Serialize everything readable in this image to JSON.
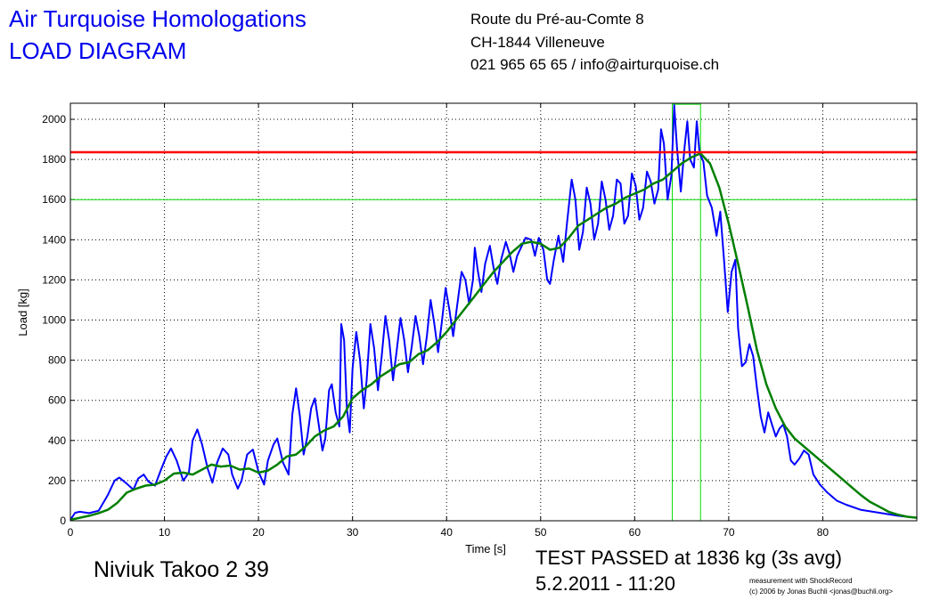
{
  "header": {
    "title_line1": "Air Turquoise Homologations",
    "title_line2": "LOAD DIAGRAM",
    "address_line1": "Route du Pré-au-Comte 8",
    "address_line2": "CH-1844 Villeneuve",
    "address_line3": "021 965 65 65 / info@airturquoise.ch"
  },
  "footer": {
    "glider": "Niviuk Takoo 2 39",
    "result": "TEST PASSED at 1836 kg (3s avg)",
    "date": "5.2.2011 - 11:20",
    "credit_line1": "measurement with ShockRecord",
    "credit_line2": "(c) 2006 by Jonas Buchli <jonas@buchli.org>"
  },
  "colors": {
    "raw": "#0000ff",
    "avg": "#007f00",
    "limit": "#ff0000",
    "window": "#00dd00",
    "grid": "#000000"
  },
  "chart_data": {
    "type": "line",
    "title": "",
    "xlabel": "Time [s]",
    "ylabel": "Load [kg]",
    "xlim": [
      0,
      90
    ],
    "ylim": [
      0,
      2080
    ],
    "xticks": [
      0,
      10,
      20,
      30,
      40,
      50,
      60,
      70,
      80
    ],
    "yticks": [
      0,
      200,
      400,
      600,
      800,
      1000,
      1200,
      1400,
      1600,
      1800,
      2000
    ],
    "grid": true,
    "limit_load": 1836,
    "window_lower": 1600,
    "window_start": 64,
    "window_end": 67,
    "window_top": 2075,
    "series": [
      {
        "values": [
          [
            0,
            5
          ],
          [
            0.5,
            40
          ],
          [
            1,
            45
          ],
          [
            2,
            38
          ],
          [
            3,
            50
          ],
          [
            4,
            130
          ],
          [
            4.7,
            200
          ],
          [
            5.2,
            215
          ],
          [
            6,
            185
          ],
          [
            6.7,
            155
          ],
          [
            7.2,
            210
          ],
          [
            7.8,
            230
          ],
          [
            8.3,
            195
          ],
          [
            9,
            175
          ],
          [
            9.6,
            250
          ],
          [
            10.2,
            320
          ],
          [
            10.7,
            360
          ],
          [
            11.3,
            300
          ],
          [
            12,
            200
          ],
          [
            12.6,
            240
          ],
          [
            13,
            400
          ],
          [
            13.5,
            455
          ],
          [
            14,
            380
          ],
          [
            14.6,
            260
          ],
          [
            15.1,
            190
          ],
          [
            15.6,
            290
          ],
          [
            16.2,
            360
          ],
          [
            16.8,
            330
          ],
          [
            17.2,
            230
          ],
          [
            17.8,
            160
          ],
          [
            18.2,
            200
          ],
          [
            18.8,
            330
          ],
          [
            19.4,
            355
          ],
          [
            20,
            245
          ],
          [
            20.6,
            180
          ],
          [
            21,
            300
          ],
          [
            21.6,
            380
          ],
          [
            22,
            410
          ],
          [
            22.6,
            290
          ],
          [
            23.2,
            230
          ],
          [
            23.6,
            530
          ],
          [
            24,
            660
          ],
          [
            24.4,
            520
          ],
          [
            24.8,
            330
          ],
          [
            25.2,
            420
          ],
          [
            25.6,
            560
          ],
          [
            26,
            610
          ],
          [
            26.4,
            480
          ],
          [
            26.8,
            350
          ],
          [
            27.1,
            410
          ],
          [
            27.5,
            650
          ],
          [
            27.8,
            680
          ],
          [
            28.2,
            540
          ],
          [
            28.6,
            470
          ],
          [
            28.8,
            980
          ],
          [
            29.1,
            900
          ],
          [
            29.4,
            560
          ],
          [
            29.7,
            440
          ],
          [
            30,
            760
          ],
          [
            30.4,
            940
          ],
          [
            30.8,
            800
          ],
          [
            31.2,
            560
          ],
          [
            31.5,
            700
          ],
          [
            31.9,
            980
          ],
          [
            32.3,
            860
          ],
          [
            32.7,
            650
          ],
          [
            33.1,
            820
          ],
          [
            33.5,
            1020
          ],
          [
            33.9,
            900
          ],
          [
            34.3,
            700
          ],
          [
            34.7,
            850
          ],
          [
            35.1,
            1010
          ],
          [
            35.5,
            900
          ],
          [
            35.9,
            740
          ],
          [
            36.3,
            870
          ],
          [
            36.7,
            1020
          ],
          [
            37.1,
            920
          ],
          [
            37.5,
            780
          ],
          [
            37.9,
            920
          ],
          [
            38.3,
            1100
          ],
          [
            38.7,
            980
          ],
          [
            39.1,
            840
          ],
          [
            39.5,
            990
          ],
          [
            39.9,
            1160
          ],
          [
            40.3,
            1050
          ],
          [
            40.7,
            920
          ],
          [
            41.2,
            1100
          ],
          [
            41.6,
            1240
          ],
          [
            42,
            1200
          ],
          [
            42.4,
            1080
          ],
          [
            42.8,
            1200
          ],
          [
            43,
            1360
          ],
          [
            43.3,
            1250
          ],
          [
            43.7,
            1140
          ],
          [
            44.1,
            1280
          ],
          [
            44.6,
            1370
          ],
          [
            45,
            1260
          ],
          [
            45.4,
            1180
          ],
          [
            45.8,
            1300
          ],
          [
            46.3,
            1390
          ],
          [
            46.7,
            1330
          ],
          [
            47.1,
            1240
          ],
          [
            47.5,
            1320
          ],
          [
            48.4,
            1410
          ],
          [
            49,
            1400
          ],
          [
            49.4,
            1320
          ],
          [
            49.8,
            1410
          ],
          [
            50.3,
            1350
          ],
          [
            50.7,
            1200
          ],
          [
            51,
            1180
          ],
          [
            51.4,
            1300
          ],
          [
            51.9,
            1420
          ],
          [
            52.4,
            1290
          ],
          [
            52.8,
            1480
          ],
          [
            53.3,
            1700
          ],
          [
            53.7,
            1600
          ],
          [
            54.1,
            1350
          ],
          [
            54.5,
            1440
          ],
          [
            54.9,
            1660
          ],
          [
            55.3,
            1580
          ],
          [
            55.7,
            1400
          ],
          [
            56.1,
            1480
          ],
          [
            56.5,
            1690
          ],
          [
            56.9,
            1600
          ],
          [
            57.3,
            1450
          ],
          [
            57.7,
            1520
          ],
          [
            58.1,
            1700
          ],
          [
            58.5,
            1680
          ],
          [
            58.9,
            1480
          ],
          [
            59.3,
            1520
          ],
          [
            59.7,
            1730
          ],
          [
            60.1,
            1670
          ],
          [
            60.5,
            1500
          ],
          [
            60.9,
            1560
          ],
          [
            61.3,
            1740
          ],
          [
            61.7,
            1690
          ],
          [
            62.1,
            1580
          ],
          [
            62.5,
            1650
          ],
          [
            62.8,
            1950
          ],
          [
            63.1,
            1880
          ],
          [
            63.5,
            1600
          ],
          [
            63.9,
            1720
          ],
          [
            64.2,
            2070
          ],
          [
            64.5,
            1860
          ],
          [
            64.9,
            1640
          ],
          [
            65.3,
            1860
          ],
          [
            65.6,
            1990
          ],
          [
            65.9,
            1800
          ],
          [
            66.3,
            1760
          ],
          [
            66.6,
            1990
          ],
          [
            66.9,
            1830
          ],
          [
            67.3,
            1790
          ],
          [
            67.7,
            1620
          ],
          [
            68.2,
            1560
          ],
          [
            68.7,
            1420
          ],
          [
            69.1,
            1540
          ],
          [
            69.5,
            1300
          ],
          [
            69.9,
            1040
          ],
          [
            70.3,
            1240
          ],
          [
            70.7,
            1300
          ],
          [
            71,
            960
          ],
          [
            71.4,
            770
          ],
          [
            71.8,
            790
          ],
          [
            72.2,
            880
          ],
          [
            72.6,
            820
          ],
          [
            73,
            660
          ],
          [
            73.4,
            520
          ],
          [
            73.8,
            440
          ],
          [
            74.2,
            540
          ],
          [
            74.6,
            480
          ],
          [
            75,
            420
          ],
          [
            75.4,
            460
          ],
          [
            75.8,
            480
          ],
          [
            76.2,
            420
          ],
          [
            76.6,
            300
          ],
          [
            77,
            280
          ],
          [
            77.5,
            310
          ],
          [
            78,
            350
          ],
          [
            78.5,
            330
          ],
          [
            79,
            230
          ],
          [
            79.7,
            180
          ],
          [
            80.5,
            140
          ],
          [
            81.5,
            100
          ],
          [
            82.5,
            80
          ],
          [
            84,
            55
          ],
          [
            86,
            40
          ],
          [
            88,
            25
          ],
          [
            90,
            15
          ]
        ]
      },
      {
        "values": [
          [
            0,
            5
          ],
          [
            1,
            15
          ],
          [
            2,
            25
          ],
          [
            3,
            38
          ],
          [
            4,
            55
          ],
          [
            5,
            90
          ],
          [
            6,
            140
          ],
          [
            7,
            160
          ],
          [
            8,
            175
          ],
          [
            9,
            180
          ],
          [
            10,
            200
          ],
          [
            11,
            235
          ],
          [
            12,
            240
          ],
          [
            13,
            230
          ],
          [
            14,
            255
          ],
          [
            15,
            280
          ],
          [
            16,
            270
          ],
          [
            17,
            275
          ],
          [
            18,
            255
          ],
          [
            19,
            260
          ],
          [
            20,
            240
          ],
          [
            21,
            250
          ],
          [
            22,
            280
          ],
          [
            23,
            320
          ],
          [
            24,
            330
          ],
          [
            25,
            370
          ],
          [
            26,
            420
          ],
          [
            27,
            450
          ],
          [
            28,
            470
          ],
          [
            29,
            520
          ],
          [
            30,
            610
          ],
          [
            31,
            650
          ],
          [
            32,
            680
          ],
          [
            33,
            720
          ],
          [
            34,
            750
          ],
          [
            35,
            780
          ],
          [
            36,
            790
          ],
          [
            37,
            830
          ],
          [
            38,
            850
          ],
          [
            39,
            890
          ],
          [
            40,
            940
          ],
          [
            41,
            1000
          ],
          [
            42,
            1060
          ],
          [
            43,
            1120
          ],
          [
            44,
            1180
          ],
          [
            45,
            1240
          ],
          [
            46,
            1290
          ],
          [
            47,
            1340
          ],
          [
            48,
            1380
          ],
          [
            49,
            1390
          ],
          [
            50,
            1380
          ],
          [
            51,
            1350
          ],
          [
            52,
            1360
          ],
          [
            53,
            1410
          ],
          [
            54,
            1470
          ],
          [
            55,
            1500
          ],
          [
            56,
            1530
          ],
          [
            57,
            1560
          ],
          [
            58,
            1580
          ],
          [
            59,
            1610
          ],
          [
            60,
            1630
          ],
          [
            61,
            1650
          ],
          [
            62,
            1680
          ],
          [
            63,
            1700
          ],
          [
            64,
            1740
          ],
          [
            65,
            1780
          ],
          [
            66,
            1810
          ],
          [
            67,
            1830
          ],
          [
            68,
            1780
          ],
          [
            69,
            1660
          ],
          [
            70,
            1480
          ],
          [
            71,
            1280
          ],
          [
            72,
            1070
          ],
          [
            73,
            850
          ],
          [
            74,
            680
          ],
          [
            75,
            560
          ],
          [
            76,
            470
          ],
          [
            77,
            410
          ],
          [
            78,
            370
          ],
          [
            79,
            330
          ],
          [
            80,
            290
          ],
          [
            81,
            250
          ],
          [
            82,
            210
          ],
          [
            83,
            170
          ],
          [
            84,
            130
          ],
          [
            85,
            95
          ],
          [
            86,
            70
          ],
          [
            87,
            45
          ],
          [
            88,
            30
          ],
          [
            89,
            20
          ],
          [
            90,
            15
          ]
        ]
      }
    ]
  }
}
